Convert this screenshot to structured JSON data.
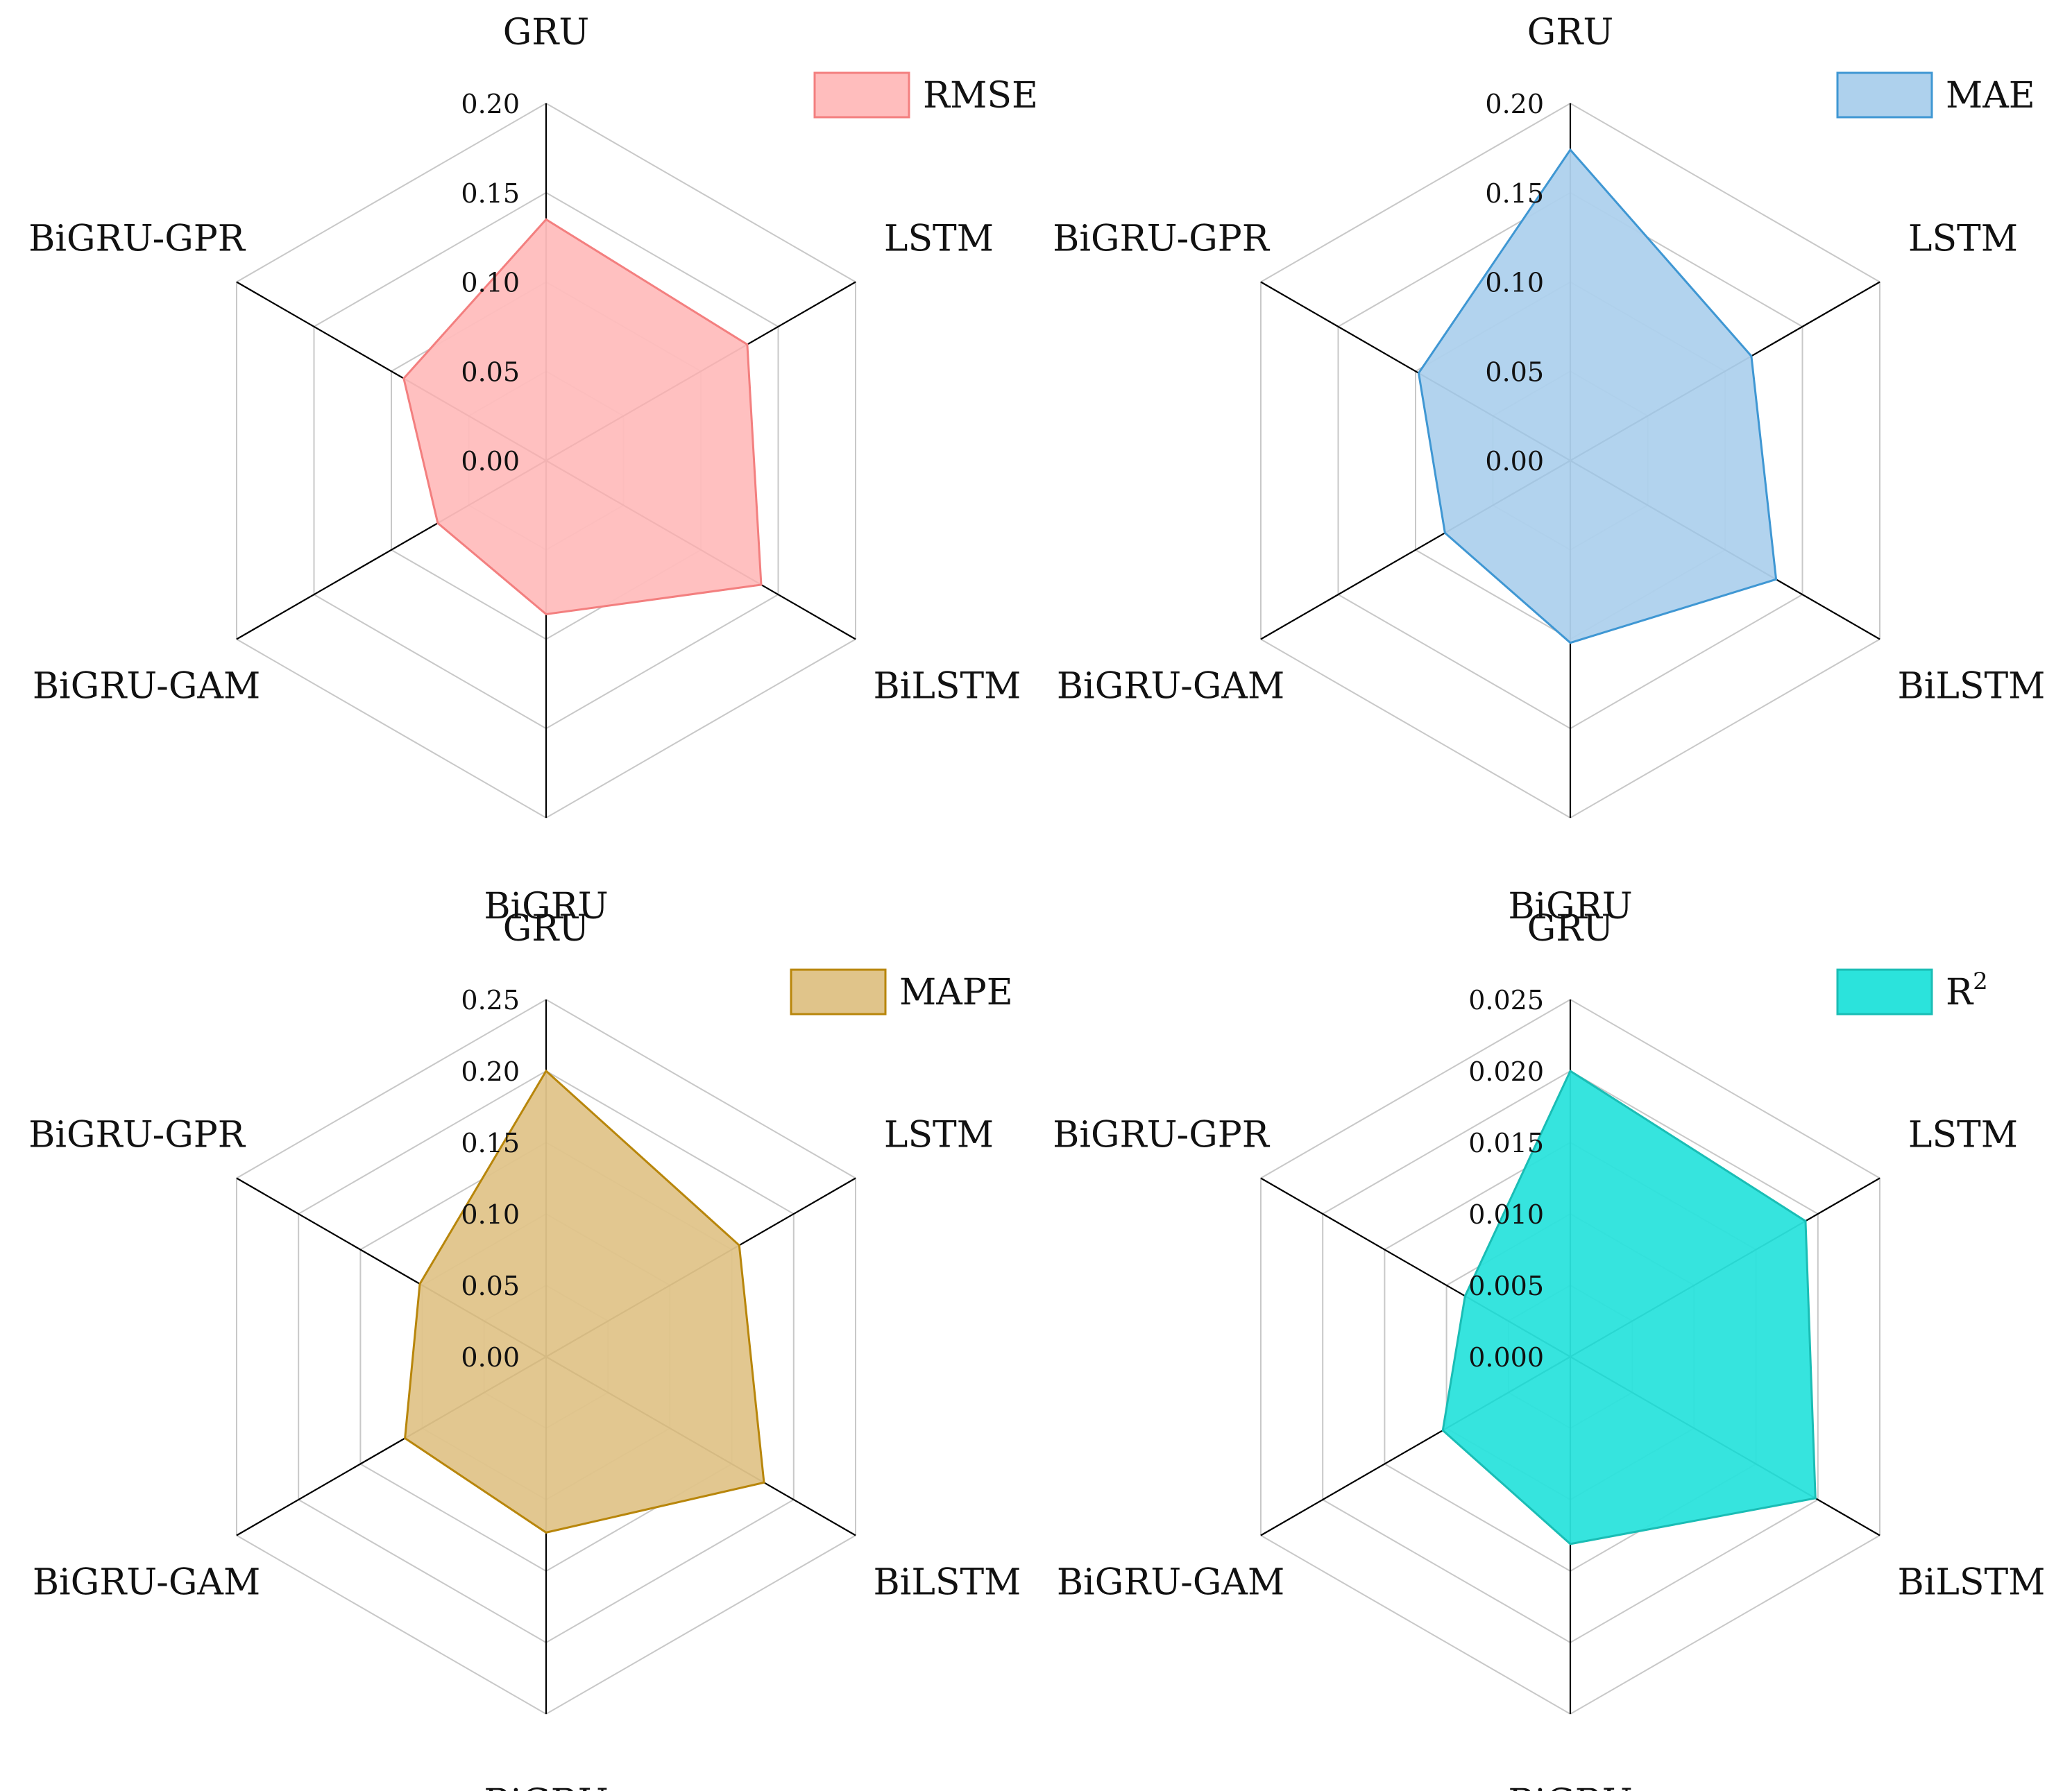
{
  "chart_data": [
    {
      "type": "radar",
      "axes": [
        "GRU",
        "LSTM",
        "BiLSTM",
        "BiGRU",
        "BiGRU-GAM",
        "BiGRU-GPR"
      ],
      "series": [
        {
          "name": "RMSE",
          "values": [
            0.135,
            0.13,
            0.139,
            0.086,
            0.07,
            0.092
          ]
        }
      ],
      "rlim": [
        0,
        0.2
      ],
      "ticks": [
        "0.00",
        "0.05",
        "0.10",
        "0.15",
        "0.20"
      ],
      "color": "#f37f7f",
      "fill": "#ffbdbd"
    },
    {
      "type": "radar",
      "axes": [
        "GRU",
        "LSTM",
        "BiLSTM",
        "BiGRU",
        "BiGRU-GAM",
        "BiGRU-GPR"
      ],
      "series": [
        {
          "name": "MAE",
          "values": [
            0.174,
            0.117,
            0.133,
            0.102,
            0.081,
            0.098
          ]
        }
      ],
      "rlim": [
        0,
        0.2
      ],
      "ticks": [
        "0.00",
        "0.05",
        "0.10",
        "0.15",
        "0.20"
      ],
      "color": "#3f97d3",
      "fill": "#aed1ed"
    },
    {
      "type": "radar",
      "axes": [
        "GRU",
        "LSTM",
        "BiLSTM",
        "BiGRU",
        "BiGRU-GAM",
        "BiGRU-GPR"
      ],
      "series": [
        {
          "name": "MAPE",
          "values": [
            0.2,
            0.156,
            0.176,
            0.123,
            0.114,
            0.102
          ]
        }
      ],
      "rlim": [
        0,
        0.25
      ],
      "ticks": [
        "0.00",
        "0.05",
        "0.10",
        "0.15",
        "0.20",
        "0.25"
      ],
      "color": "#b8860b",
      "fill": "#e0c48a"
    },
    {
      "type": "radar",
      "axes": [
        "GRU",
        "LSTM",
        "BiLSTM",
        "BiGRU",
        "BiGRU-GAM",
        "BiGRU-GPR"
      ],
      "series": [
        {
          "name": "R",
          "superscript": "2",
          "values": [
            0.02,
            0.019,
            0.0198,
            0.0131,
            0.0103,
            0.0085
          ]
        }
      ],
      "rlim": [
        0,
        0.025
      ],
      "ticks": [
        "0.000",
        "0.005",
        "0.010",
        "0.015",
        "0.020",
        "0.025"
      ],
      "color": "#1abdb5",
      "fill": "#2be3dc"
    }
  ]
}
